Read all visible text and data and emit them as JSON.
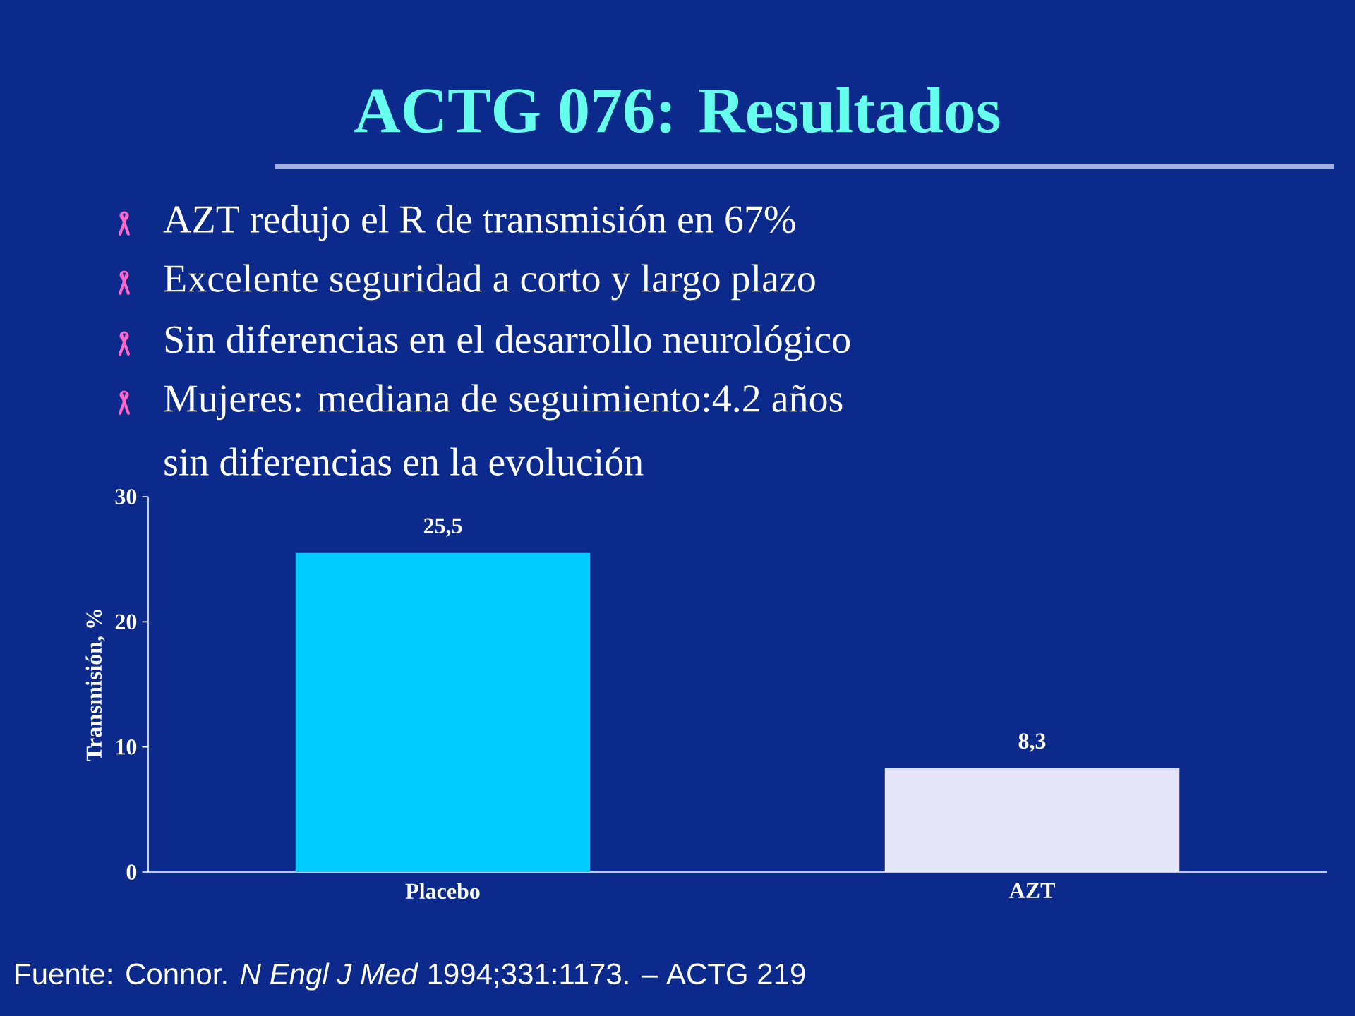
{
  "chart_data": {
    "type": "bar",
    "title": "ACTG 076: Resultados",
    "annotations": [
      "AZT redujo el R de transmisión en 67%",
      "Excelente seguridad a corto y largo plazo",
      "Sin diferencias en el desarrollo neurológico",
      "Mujeres: mediana de seguimiento:4.2 años",
      "sin diferencias en la evolución",
      "Fuente: Connor. *N Engl J Med* 1994;331:1173. – ACTG 219"
    ],
    "ylabel": "Transmisión, %",
    "categories": [
      "Placebo",
      "AZT"
    ],
    "values": [
      25.5,
      8.3
    ],
    "value_labels": [
      "25,5",
      "8,3"
    ],
    "colors": [
      "#00ccff",
      "#e6e6fa"
    ],
    "ylim": [
      0,
      30
    ],
    "yticks": [
      0,
      10,
      20,
      30
    ],
    "grid": false
  }
}
